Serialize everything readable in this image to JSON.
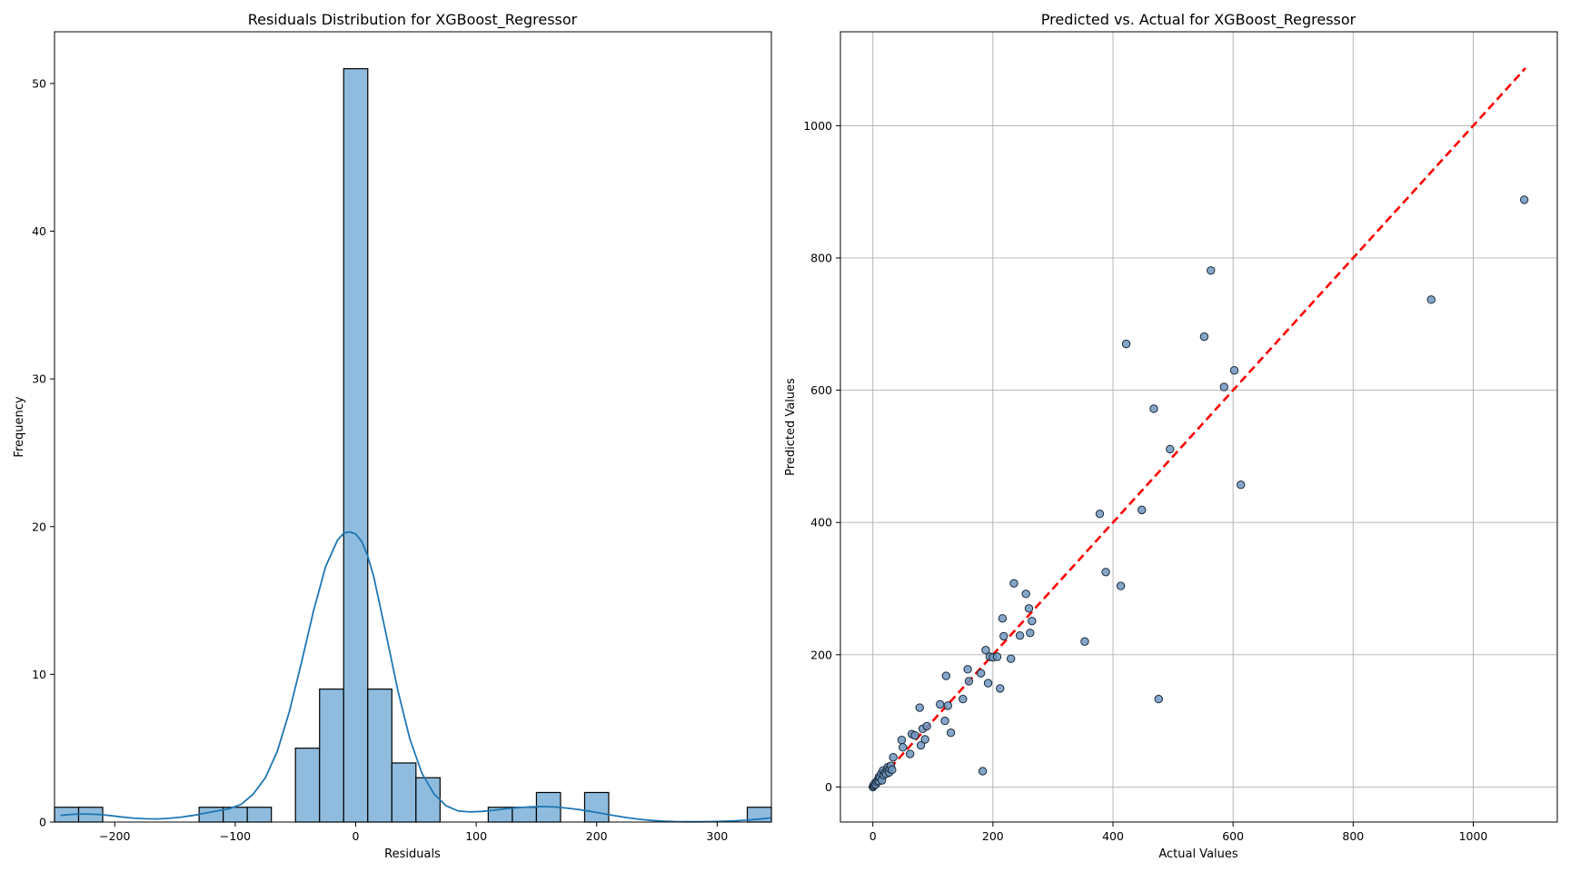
{
  "chart_data": [
    {
      "type": "histogram",
      "title": "Residuals Distribution for XGBoost_Regressor",
      "xlabel": "Residuals",
      "ylabel": "Frequency",
      "xlim": [
        -250,
        345
      ],
      "ylim": [
        0,
        53.5
      ],
      "xticks": [
        -200,
        -100,
        0,
        100,
        200,
        300
      ],
      "yticks": [
        0,
        10,
        20,
        30,
        40,
        50
      ],
      "xtick_labels": [
        "−200",
        "−100",
        "0",
        "100",
        "200",
        "300"
      ],
      "ytick_labels": [
        "0",
        "10",
        "20",
        "30",
        "40",
        "50"
      ],
      "grid": false,
      "bar_color": "#8fbcde",
      "edge_color": "#000000",
      "kde_color": "#1f77b4",
      "bins": [
        {
          "x0": -250,
          "x1": -230,
          "count": 1
        },
        {
          "x0": -230,
          "x1": -210,
          "count": 1
        },
        {
          "x0": -130,
          "x1": -110,
          "count": 1
        },
        {
          "x0": -110,
          "x1": -90,
          "count": 1
        },
        {
          "x0": -90,
          "x1": -70,
          "count": 1
        },
        {
          "x0": -50,
          "x1": -30,
          "count": 5
        },
        {
          "x0": -30,
          "x1": -10,
          "count": 9
        },
        {
          "x0": -10,
          "x1": 10,
          "count": 51
        },
        {
          "x0": 10,
          "x1": 30,
          "count": 9
        },
        {
          "x0": 30,
          "x1": 50,
          "count": 4
        },
        {
          "x0": 50,
          "x1": 70,
          "count": 3
        },
        {
          "x0": 110,
          "x1": 130,
          "count": 1
        },
        {
          "x0": 130,
          "x1": 150,
          "count": 1
        },
        {
          "x0": 150,
          "x1": 170,
          "count": 2
        },
        {
          "x0": 190,
          "x1": 210,
          "count": 2
        },
        {
          "x0": 325,
          "x1": 345,
          "count": 1
        }
      ],
      "kde": {
        "x": [
          -245,
          -235,
          -225,
          -215,
          -205,
          -195,
          -185,
          -175,
          -165,
          -155,
          -145,
          -135,
          -125,
          -115,
          -105,
          -95,
          -85,
          -75,
          -65,
          -55,
          -45,
          -35,
          -25,
          -15,
          -10,
          -5,
          0,
          5,
          10,
          15,
          25,
          35,
          45,
          55,
          65,
          75,
          85,
          95,
          105,
          115,
          125,
          135,
          145,
          155,
          165,
          175,
          185,
          195,
          205,
          215,
          225,
          235,
          245,
          255,
          265,
          275,
          285,
          295,
          305,
          315,
          325,
          335,
          345
        ],
        "y": [
          0.45,
          0.52,
          0.55,
          0.52,
          0.45,
          0.35,
          0.27,
          0.22,
          0.21,
          0.25,
          0.33,
          0.45,
          0.6,
          0.75,
          0.9,
          1.2,
          1.9,
          3.0,
          4.8,
          7.5,
          10.8,
          14.3,
          17.3,
          19.1,
          19.55,
          19.65,
          19.5,
          19.0,
          18.0,
          16.6,
          12.8,
          8.9,
          5.6,
          3.3,
          1.9,
          1.1,
          0.75,
          0.68,
          0.72,
          0.8,
          0.9,
          0.98,
          1.03,
          1.05,
          1.02,
          0.95,
          0.85,
          0.72,
          0.58,
          0.43,
          0.3,
          0.19,
          0.11,
          0.06,
          0.03,
          0.02,
          0.02,
          0.03,
          0.05,
          0.08,
          0.13,
          0.2,
          0.28
        ]
      }
    },
    {
      "type": "scatter",
      "title": "Predicted vs. Actual for XGBoost_Regressor",
      "xlabel": "Actual Values",
      "ylabel": "Predicted Values",
      "xlim": [
        -54,
        1140
      ],
      "ylim": [
        -53,
        1142
      ],
      "xticks": [
        0,
        200,
        400,
        600,
        800,
        1000
      ],
      "yticks": [
        0,
        200,
        400,
        600,
        800,
        1000
      ],
      "xtick_labels": [
        "0",
        "200",
        "400",
        "600",
        "800",
        "1000"
      ],
      "ytick_labels": [
        "0",
        "200",
        "400",
        "600",
        "800",
        "1000"
      ],
      "grid": true,
      "point_color": "#6f97bf",
      "point_edge_color": "#1a2a3a",
      "reference_line": {
        "x": [
          0,
          1087
        ],
        "y": [
          0,
          1087
        ],
        "color": "#ff0000",
        "style": "dashed"
      },
      "points": [
        [
          0,
          0
        ],
        [
          1,
          2
        ],
        [
          2,
          3
        ],
        [
          3,
          5
        ],
        [
          5,
          4
        ],
        [
          6,
          8
        ],
        [
          8,
          10
        ],
        [
          10,
          9
        ],
        [
          10,
          15
        ],
        [
          12,
          14
        ],
        [
          14,
          20
        ],
        [
          15,
          10
        ],
        [
          17,
          25
        ],
        [
          18,
          18
        ],
        [
          20,
          22
        ],
        [
          22,
          20
        ],
        [
          24,
          26
        ],
        [
          25,
          30
        ],
        [
          27,
          22
        ],
        [
          28,
          28
        ],
        [
          30,
          32
        ],
        [
          32,
          26
        ],
        [
          34,
          45
        ],
        [
          48,
          71
        ],
        [
          50,
          60
        ],
        [
          62,
          50
        ],
        [
          65,
          80
        ],
        [
          70,
          78
        ],
        [
          78,
          120
        ],
        [
          80,
          63
        ],
        [
          83,
          88
        ],
        [
          87,
          72
        ],
        [
          90,
          92
        ],
        [
          112,
          125
        ],
        [
          120,
          100
        ],
        [
          122,
          168
        ],
        [
          125,
          123
        ],
        [
          130,
          82
        ],
        [
          150,
          133
        ],
        [
          158,
          178
        ],
        [
          160,
          160
        ],
        [
          180,
          172
        ],
        [
          183,
          24
        ],
        [
          188,
          207
        ],
        [
          192,
          157
        ],
        [
          195,
          197
        ],
        [
          200,
          196
        ],
        [
          207,
          197
        ],
        [
          212,
          149
        ],
        [
          216,
          255
        ],
        [
          218,
          228
        ],
        [
          230,
          194
        ],
        [
          235,
          308
        ],
        [
          245,
          229
        ],
        [
          255,
          292
        ],
        [
          260,
          270
        ],
        [
          262,
          233
        ],
        [
          265,
          251
        ],
        [
          353,
          220
        ],
        [
          378,
          413
        ],
        [
          388,
          325
        ],
        [
          413,
          304
        ],
        [
          422,
          670
        ],
        [
          448,
          419
        ],
        [
          468,
          572
        ],
        [
          476,
          133
        ],
        [
          495,
          511
        ],
        [
          552,
          681
        ],
        [
          563,
          781
        ],
        [
          585,
          605
        ],
        [
          602,
          630
        ],
        [
          613,
          457
        ],
        [
          930,
          737
        ],
        [
          1085,
          888
        ]
      ]
    }
  ]
}
